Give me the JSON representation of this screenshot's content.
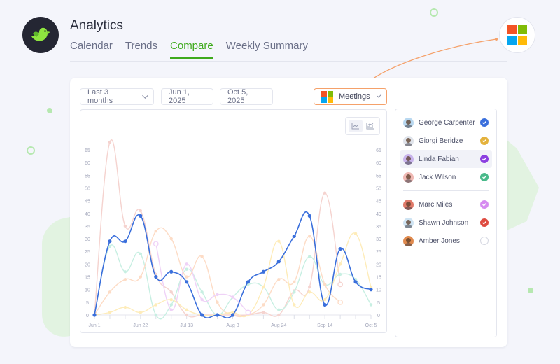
{
  "header": {
    "title": "Analytics",
    "tabs": [
      {
        "label": "Calendar",
        "active": false
      },
      {
        "label": "Trends",
        "active": false
      },
      {
        "label": "Compare",
        "active": true
      },
      {
        "label": "Weekly Summary",
        "active": false
      }
    ]
  },
  "brand": {
    "logo_icon": "bird-icon",
    "app_icon": "microsoft-logo-icon",
    "ms_colors": [
      "#f35325",
      "#81bc06",
      "#05a6f0",
      "#ffba08"
    ]
  },
  "filters": {
    "range_label": "Last 3 months",
    "start_date": "Jun 1, 2025",
    "end_date": "Oct 5, 2025",
    "metric_label": "Meetings"
  },
  "chart_tools": [
    {
      "name": "line-chart-icon",
      "active": true
    },
    {
      "name": "bar-line-chart-icon",
      "active": false
    }
  ],
  "people": [
    {
      "name": "George Carpenter",
      "color": "#3a6fdc",
      "checked": true,
      "highlight": false,
      "avatar_bg": "#b9d8f0"
    },
    {
      "name": "Giorgi Beridze",
      "color": "#e4b23c",
      "checked": true,
      "highlight": false,
      "avatar_bg": "#dfe3ea"
    },
    {
      "name": "Linda Fabian",
      "color": "#8c3fe0",
      "checked": true,
      "highlight": true,
      "avatar_bg": "#c9b4ec"
    },
    {
      "name": "Jack Wilson",
      "color": "#49b98a",
      "checked": true,
      "highlight": false,
      "avatar_bg": "#f0b9b4"
    }
  ],
  "people_group2": [
    {
      "name": "Marc Miles",
      "color": "#d68bf0",
      "checked": true,
      "highlight": false,
      "avatar_bg": "#e07a6a"
    },
    {
      "name": "Shawn Johnson",
      "color": "#de4b40",
      "checked": true,
      "highlight": false,
      "avatar_bg": "#cfe4f3"
    },
    {
      "name": "Amber Jones",
      "color": "#cfd2dc",
      "checked": false,
      "highlight": false,
      "avatar_bg": "#e08a4e"
    }
  ],
  "chart_data": {
    "type": "line",
    "title": "",
    "xlabel": "",
    "ylabel": "",
    "ylim": [
      0,
      65
    ],
    "yticks": [
      0,
      5,
      10,
      15,
      20,
      25,
      30,
      35,
      40,
      45,
      50,
      55,
      60,
      65
    ],
    "y_axis_both_sides": true,
    "x": [
      "Jun 1",
      "Jun 8",
      "Jun 15",
      "Jun 22",
      "Jun 29",
      "Jul 6",
      "Jul 13",
      "Jul 20",
      "Jul 27",
      "Aug 3",
      "Aug 10",
      "Aug 17",
      "Aug 24",
      "Aug 31",
      "Sep 7",
      "Sep 14",
      "Sep 21",
      "Sep 28",
      "Oct 5"
    ],
    "x_tick_labels": [
      "Jun 1",
      "Jun 22",
      "Jul 13",
      "Aug 3",
      "Aug 24",
      "Sep 14",
      "Oct 5"
    ],
    "grid": false,
    "series": [
      {
        "name": "Shawn Johnson",
        "color": "#f5d3cf",
        "emphasis": false,
        "values": [
          0,
          68,
          35,
          41,
          16,
          9,
          0,
          0,
          0,
          0,
          0,
          1,
          0,
          9.5,
          11,
          48,
          12,
          null,
          null
        ]
      },
      {
        "name": "Jack Wilson",
        "color": "#c7efe2",
        "emphasis": false,
        "values": [
          0,
          27,
          17,
          24,
          0,
          4,
          18,
          9,
          0,
          7,
          12,
          11,
          2,
          9,
          23,
          12,
          16,
          14,
          4
        ]
      },
      {
        "name": "Amber Jones",
        "color": "#fddcc6",
        "emphasis": false,
        "values": [
          0,
          9,
          14,
          15,
          33,
          30,
          15,
          23,
          5,
          0,
          0,
          4,
          14,
          13,
          31,
          12,
          5,
          null,
          null
        ]
      },
      {
        "name": "Giorgi Beridze",
        "color": "#feecb9",
        "emphasis": false,
        "values": [
          0,
          1,
          3,
          1,
          4,
          6,
          2,
          0,
          0,
          1,
          0,
          11,
          29,
          4,
          9,
          6,
          20,
          32,
          11
        ]
      },
      {
        "name": "Marc Miles",
        "color": "#efd2f7",
        "emphasis": false,
        "values": [
          null,
          null,
          null,
          null,
          28,
          2,
          20,
          6,
          8,
          7,
          1,
          null,
          null,
          null,
          null,
          null,
          null,
          null,
          null
        ]
      },
      {
        "name": "George Carpenter",
        "color": "#3a6fdc",
        "emphasis": true,
        "values": [
          0,
          29,
          29,
          39,
          15,
          17,
          13,
          0,
          0,
          0,
          13,
          17,
          21,
          31,
          39,
          4,
          26,
          13,
          10
        ]
      }
    ]
  }
}
